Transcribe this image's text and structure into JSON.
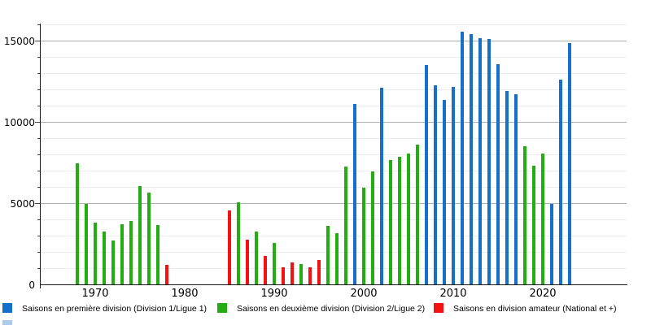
{
  "chart_data": {
    "type": "bar",
    "title": "",
    "xlabel": "",
    "ylabel": "",
    "x_axis": {
      "tick_years": [
        1970,
        1980,
        1990,
        2000,
        2010,
        2020
      ]
    },
    "y_axis": {
      "min": 0,
      "max": 16000,
      "labeled_ticks": [
        0,
        5000,
        10000,
        15000
      ],
      "minor_tick_step": 1000,
      "grid": "on"
    },
    "legend_position": "bottom",
    "bars": [
      {
        "year": 1968,
        "value": 7500,
        "division": "deuxieme"
      },
      {
        "year": 1969,
        "value": 5000,
        "division": "deuxieme"
      },
      {
        "year": 1970,
        "value": 3850,
        "division": "deuxieme"
      },
      {
        "year": 1971,
        "value": 3300,
        "division": "deuxieme"
      },
      {
        "year": 1972,
        "value": 2750,
        "division": "deuxieme"
      },
      {
        "year": 1973,
        "value": 3750,
        "division": "deuxieme"
      },
      {
        "year": 1974,
        "value": 3950,
        "division": "deuxieme"
      },
      {
        "year": 1975,
        "value": 6100,
        "division": "deuxieme"
      },
      {
        "year": 1976,
        "value": 5700,
        "division": "deuxieme"
      },
      {
        "year": 1977,
        "value": 3700,
        "division": "deuxieme"
      },
      {
        "year": 1978,
        "value": 1250,
        "division": "amateur"
      },
      {
        "year": 1985,
        "value": 4600,
        "division": "amateur"
      },
      {
        "year": 1986,
        "value": 5100,
        "division": "deuxieme"
      },
      {
        "year": 1987,
        "value": 2800,
        "division": "amateur"
      },
      {
        "year": 1988,
        "value": 3300,
        "division": "deuxieme"
      },
      {
        "year": 1989,
        "value": 1800,
        "division": "amateur"
      },
      {
        "year": 1990,
        "value": 2600,
        "division": "deuxieme"
      },
      {
        "year": 1991,
        "value": 1100,
        "division": "amateur"
      },
      {
        "year": 1992,
        "value": 1400,
        "division": "amateur"
      },
      {
        "year": 1993,
        "value": 1300,
        "division": "deuxieme"
      },
      {
        "year": 1994,
        "value": 1100,
        "division": "amateur"
      },
      {
        "year": 1995,
        "value": 1550,
        "division": "amateur"
      },
      {
        "year": 1996,
        "value": 3650,
        "division": "deuxieme"
      },
      {
        "year": 1997,
        "value": 3200,
        "division": "deuxieme"
      },
      {
        "year": 1998,
        "value": 7300,
        "division": "deuxieme"
      },
      {
        "year": 1999,
        "value": 11150,
        "division": "premiere"
      },
      {
        "year": 2000,
        "value": 6000,
        "division": "deuxieme"
      },
      {
        "year": 2001,
        "value": 7000,
        "division": "deuxieme"
      },
      {
        "year": 2002,
        "value": 12150,
        "division": "premiere"
      },
      {
        "year": 2003,
        "value": 7700,
        "division": "deuxieme"
      },
      {
        "year": 2004,
        "value": 7900,
        "division": "deuxieme"
      },
      {
        "year": 2005,
        "value": 8100,
        "division": "deuxieme"
      },
      {
        "year": 2006,
        "value": 8650,
        "division": "deuxieme"
      },
      {
        "year": 2007,
        "value": 13550,
        "division": "premiere"
      },
      {
        "year": 2008,
        "value": 12300,
        "division": "premiere"
      },
      {
        "year": 2009,
        "value": 11400,
        "division": "premiere"
      },
      {
        "year": 2010,
        "value": 12200,
        "division": "premiere"
      },
      {
        "year": 2011,
        "value": 15600,
        "division": "premiere"
      },
      {
        "year": 2012,
        "value": 15450,
        "division": "premiere"
      },
      {
        "year": 2013,
        "value": 15200,
        "division": "premiere"
      },
      {
        "year": 2014,
        "value": 15150,
        "division": "premiere"
      },
      {
        "year": 2015,
        "value": 13600,
        "division": "premiere"
      },
      {
        "year": 2016,
        "value": 11950,
        "division": "premiere"
      },
      {
        "year": 2017,
        "value": 11750,
        "division": "premiere"
      },
      {
        "year": 2018,
        "value": 8550,
        "division": "deuxieme"
      },
      {
        "year": 2019,
        "value": 7350,
        "division": "deuxieme"
      },
      {
        "year": 2020,
        "value": 8100,
        "division": "deuxieme"
      },
      {
        "year": 2021,
        "value": 5000,
        "division": "premiere"
      },
      {
        "year": 2022,
        "value": 12650,
        "division": "premiere"
      },
      {
        "year": 2023,
        "value": 14900,
        "division": "premiere"
      }
    ]
  },
  "legend": {
    "items": [
      {
        "label": "Saisons en première division (Division 1/Ligue 1)",
        "division": "premiere"
      },
      {
        "label": "Saisons en deuxième division (Division 2/Ligue 2)",
        "division": "deuxieme"
      },
      {
        "label": "Saisons en division amateur (National et +)",
        "division": "amateur"
      }
    ]
  },
  "colors": {
    "premiere": "#1470c8",
    "deuxieme": "#22ad11",
    "amateur": "#f31111",
    "grid_major": "#b0b0b0",
    "grid_minor": "#ebebf0",
    "axis": "#1a1a1a"
  }
}
